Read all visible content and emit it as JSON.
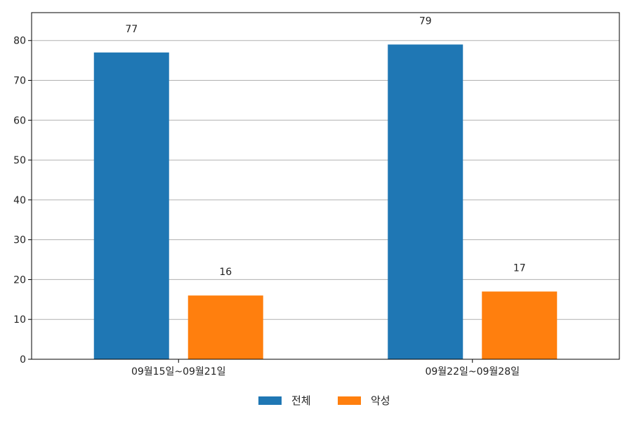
{
  "chart_data": {
    "type": "bar",
    "categories": [
      "09월15일~09월21일",
      "09월22일~09월28일"
    ],
    "series": [
      {
        "name": "전체",
        "values": [
          77,
          79
        ],
        "color": "#1f77b4"
      },
      {
        "name": "악성",
        "values": [
          16,
          17
        ],
        "color": "#ff7f0e"
      }
    ],
    "ylim": [
      0,
      87
    ],
    "yticks": [
      0,
      10,
      20,
      30,
      40,
      50,
      60,
      70,
      80
    ],
    "grid": true,
    "legend_position": "bottom-center",
    "data_labels": true
  }
}
